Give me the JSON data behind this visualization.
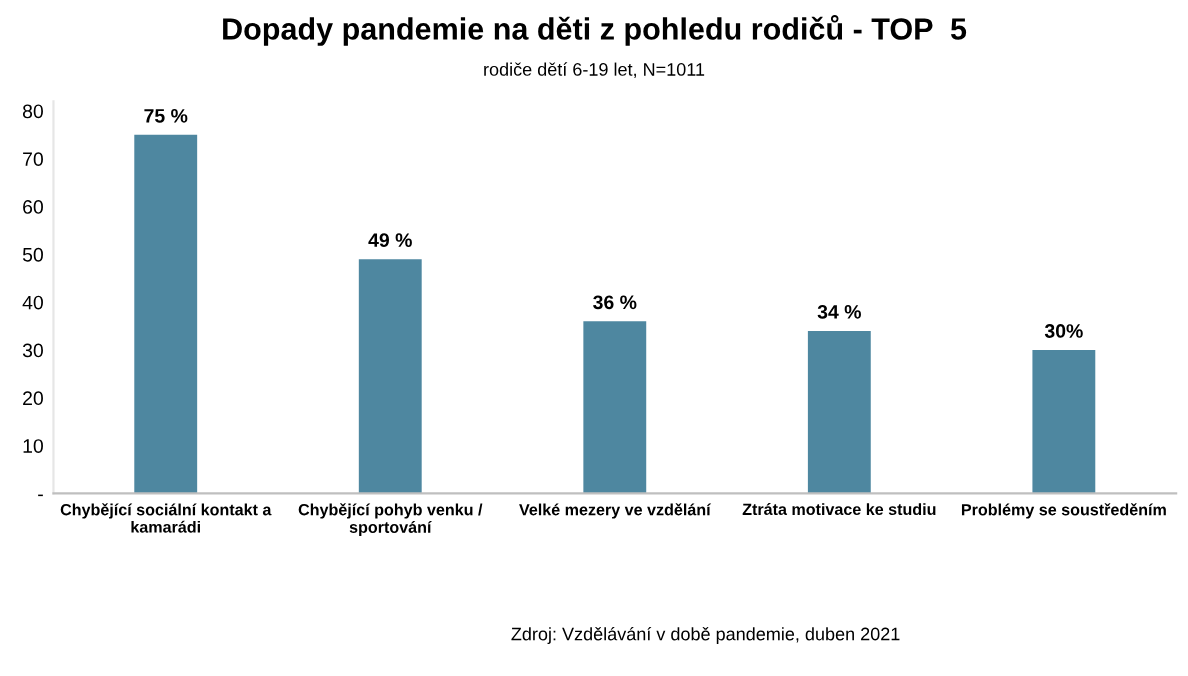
{
  "chart_data": {
    "type": "bar",
    "title": "Dopady pandemie na děti z pohledu rodičů - TOP  5",
    "subtitle": "rodiče dětí 6-19 let, N=1011",
    "categories": [
      "Chybějící sociální kontakt a\nkamarádi",
      "Chybějící pohyb venku /\nsportování",
      "Velké mezery ve vzdělání",
      "Ztráta motivace ke studiu",
      "Problémy se soustředěním"
    ],
    "values": [
      75,
      49,
      36,
      34,
      30
    ],
    "color": "#4e87a0",
    "value_labels": [
      "75 %",
      "49 %",
      "36 %",
      "34 %",
      "30%"
    ],
    "ylim": [
      0,
      82
    ],
    "yticks": [
      {
        "value": 0,
        "label": "-"
      },
      10,
      20,
      30,
      40,
      50,
      60,
      70,
      80
    ],
    "grid": false,
    "annotations": [
      "Zdroj: Vzdělávání v době pandemie, duben 2021"
    ]
  }
}
